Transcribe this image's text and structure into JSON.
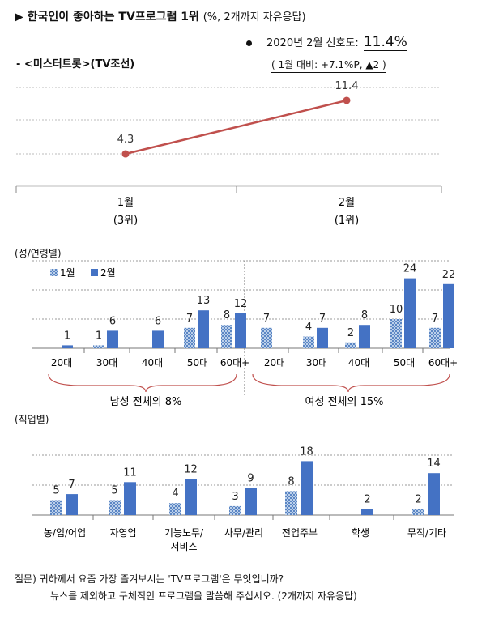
{
  "title": {
    "main": "▶ 한국인이 좋아하는 TV프로그램 1위",
    "sub": "(%, 2개까지 자유응답)"
  },
  "program": "- <미스터트롯>(TV조선)",
  "stat": {
    "label": "2020년 2월 선호도:",
    "value": "11.4%",
    "change": "( 1월 대비: +7.1%P,   ▲2 )"
  },
  "chart_data": [
    {
      "type": "line",
      "categories": [
        "1월",
        "2월"
      ],
      "category_sublabels": [
        "(3위)",
        "(1위)"
      ],
      "series": [
        {
          "values": [
            4.3,
            11.4
          ],
          "color": "#c0504d"
        }
      ],
      "grid": true
    },
    {
      "type": "bar",
      "title": "(성/연령별)",
      "categories": [
        "20대",
        "30대",
        "40대",
        "50대",
        "60대+",
        "20대",
        "30대",
        "40대",
        "50대",
        "60대+"
      ],
      "series": [
        {
          "name": "1월",
          "values": [
            null,
            1,
            null,
            7,
            8,
            7,
            4,
            2,
            10,
            7
          ],
          "pattern": "hatched"
        },
        {
          "name": "2월",
          "values": [
            1,
            6,
            6,
            13,
            12,
            null,
            7,
            8,
            24,
            22
          ],
          "color": "#4472c4"
        }
      ],
      "groups": [
        {
          "label": "남성 전체의 8%",
          "span": [
            0,
            4
          ]
        },
        {
          "label": "여성 전체의 15%",
          "span": [
            5,
            9
          ]
        }
      ],
      "legend": "top-left",
      "grid": true
    },
    {
      "type": "bar",
      "title": "(직업별)",
      "categories": [
        "농/임/어업",
        "자영업",
        "기능노무/\n서비스",
        "사무/관리",
        "전업주부",
        "학생",
        "무직/기타"
      ],
      "series": [
        {
          "name": "1월",
          "values": [
            5,
            5,
            4,
            3,
            8,
            null,
            2
          ],
          "pattern": "hatched"
        },
        {
          "name": "2월",
          "values": [
            7,
            11,
            12,
            9,
            18,
            2,
            14
          ],
          "color": "#4472c4"
        }
      ],
      "grid": true
    }
  ],
  "question": {
    "line1": "질문) 귀하께서 요즘 가장 즐겨보시는 'TV프로그램'은 무엇입니까?",
    "line2": "뉴스를 제외하고 구체적인 프로그램을 말씀해 주십시오. (2개까지 자유응답)"
  }
}
